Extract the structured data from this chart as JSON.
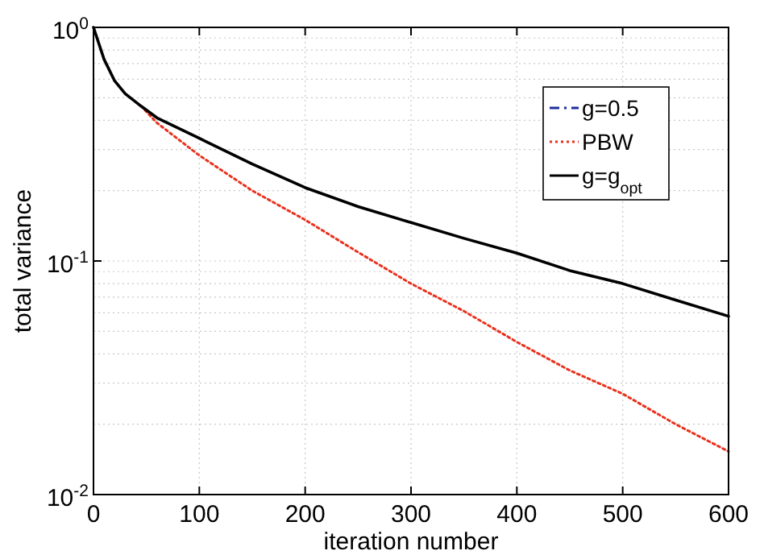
{
  "chart_data": {
    "type": "line",
    "xlabel": "iteration number",
    "ylabel": "total variance",
    "log": "y",
    "grid": true,
    "legend": "top right",
    "xlim": [
      0,
      600
    ],
    "xticks": [
      0,
      100,
      200,
      300,
      400,
      500,
      600
    ],
    "ylim": [
      0.01,
      1
    ],
    "yticks": [
      {
        "value": 0.01,
        "label": "10$^{-2}$"
      },
      {
        "value": 0.1,
        "label": "10$^{-1}$"
      },
      {
        "value": 1,
        "label": "10$^{0}$"
      }
    ],
    "x": [
      0,
      10,
      20,
      30,
      45,
      60,
      100,
      150,
      200,
      250,
      300,
      350,
      400,
      450,
      500,
      550,
      600
    ],
    "series": [
      {
        "name": "g=0.5",
        "color": "#1f2f9f",
        "line_style": "dashed",
        "values": [
          null,
          null,
          null,
          null,
          null,
          null,
          null,
          null,
          null,
          null,
          null,
          null,
          null,
          null,
          null,
          null,
          null
        ]
      },
      {
        "name": "PBW",
        "color": "#e8321e",
        "line_style": "dotted",
        "values": [
          null,
          null,
          null,
          null,
          0.46,
          0.39,
          0.283,
          0.2,
          0.15,
          0.109,
          0.08,
          0.061,
          0.045,
          0.034,
          0.027,
          0.02,
          0.0153
        ]
      },
      {
        "name": "g=g$_{opt}$",
        "color": "#000000",
        "line_style": "solid",
        "values": [
          1,
          0.73,
          0.59,
          0.52,
          0.46,
          0.41,
          0.335,
          0.26,
          0.206,
          0.171,
          0.146,
          0.125,
          0.108,
          0.091,
          0.08,
          0.068,
          0.058
        ]
      }
    ]
  }
}
